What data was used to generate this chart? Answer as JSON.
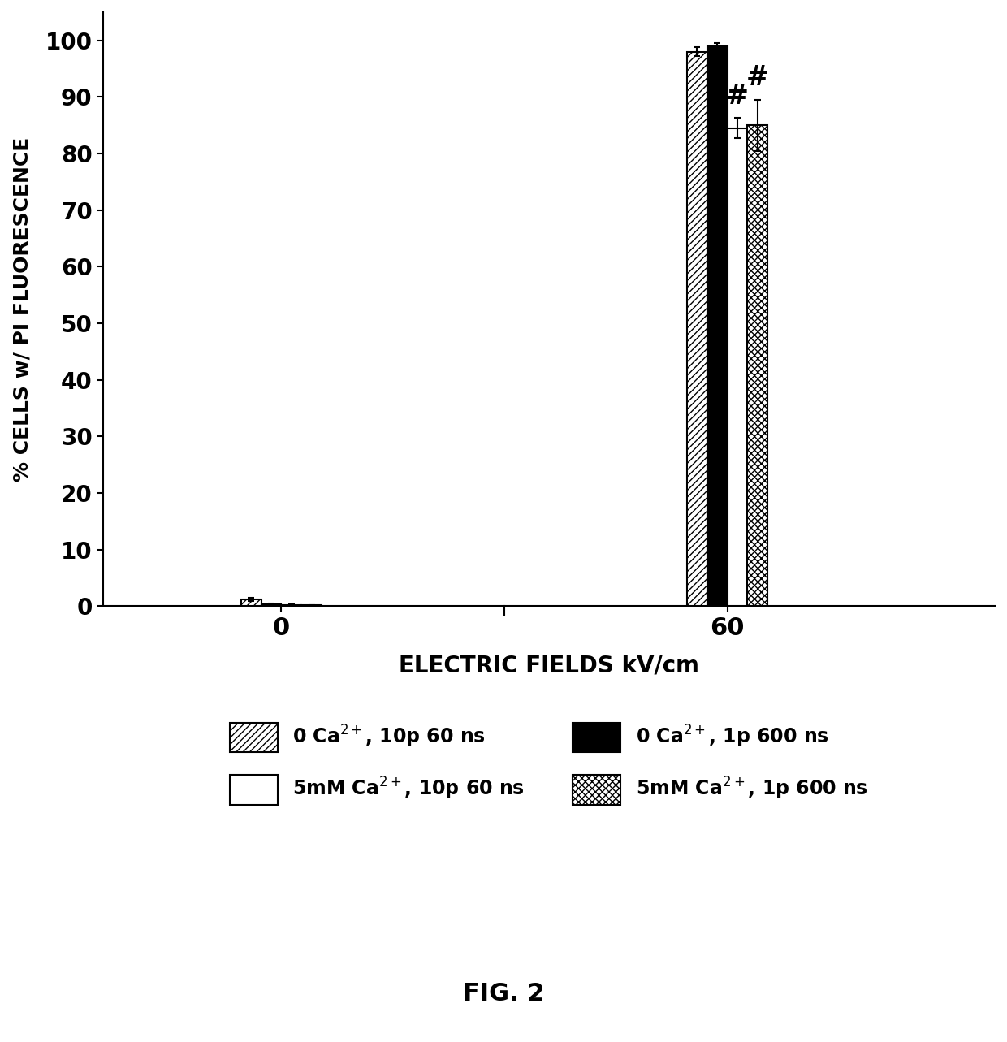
{
  "groups": [
    "0",
    "60"
  ],
  "series": [
    {
      "label": "0 Ca$^{2+}$, 10p 60 ns",
      "hatch": "////",
      "facecolor": "white",
      "edgecolor": "black",
      "values": [
        1.2,
        98.0
      ],
      "errors": [
        0.3,
        0.8
      ]
    },
    {
      "label": "0 Ca$^{2+}$, 1p 600 ns",
      "hatch": "",
      "facecolor": "black",
      "edgecolor": "black",
      "values": [
        0.3,
        99.0
      ],
      "errors": [
        0.1,
        0.5
      ]
    },
    {
      "label": "5mM Ca$^{2+}$, 10p 60 ns",
      "hatch": "",
      "facecolor": "white",
      "edgecolor": "black",
      "values": [
        0.2,
        84.5
      ],
      "errors": [
        0.1,
        1.8
      ]
    },
    {
      "label": "5mM Ca$^{2+}$, 1p 600 ns",
      "hatch": "xxxx",
      "facecolor": "white",
      "edgecolor": "black",
      "values": [
        0.1,
        85.0
      ],
      "errors": [
        0.05,
        4.5
      ]
    }
  ],
  "ylabel": "% CELLS w/ PI FLUORESCENCE",
  "xlabel": "ELECTRIC FIELDS kV/cm",
  "ylim": [
    0,
    105
  ],
  "yticks": [
    0,
    10,
    20,
    30,
    40,
    50,
    60,
    70,
    80,
    90,
    100
  ],
  "figure_caption": "FIG. 2",
  "hash_labels": [
    false,
    false,
    true,
    true
  ],
  "bar_width": 0.09,
  "group_centers": [
    1.0,
    3.0
  ],
  "xlim": [
    0.2,
    4.2
  ],
  "xtick_positions": [
    1.0,
    3.0
  ],
  "xtick_labels": [
    "0",
    "60"
  ],
  "background_color": "white"
}
